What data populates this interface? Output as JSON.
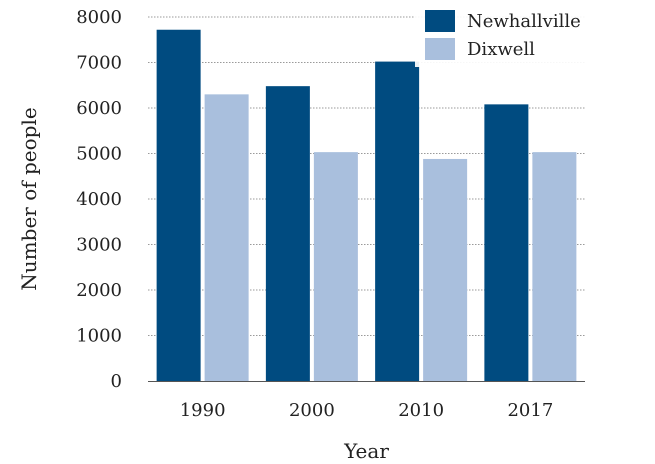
{
  "chart_data": {
    "type": "bar",
    "categories": [
      "1990",
      "2000",
      "2010",
      "2017"
    ],
    "series": [
      {
        "name": "Newhallville",
        "values": [
          7720,
          6480,
          7020,
          6080
        ],
        "color": "#004b80"
      },
      {
        "name": "Dixwell",
        "values": [
          6300,
          5030,
          4880,
          5030
        ],
        "color": "#a9bfdd"
      }
    ],
    "xlabel": "Year",
    "ylabel": "Number of people",
    "ylim": [
      0,
      8000
    ],
    "yticks": [
      "0",
      "1000",
      "2000",
      "3000",
      "4000",
      "5000",
      "6000",
      "7000",
      "8000"
    ],
    "grid": "horizontal dotted",
    "legend": "top-right"
  }
}
